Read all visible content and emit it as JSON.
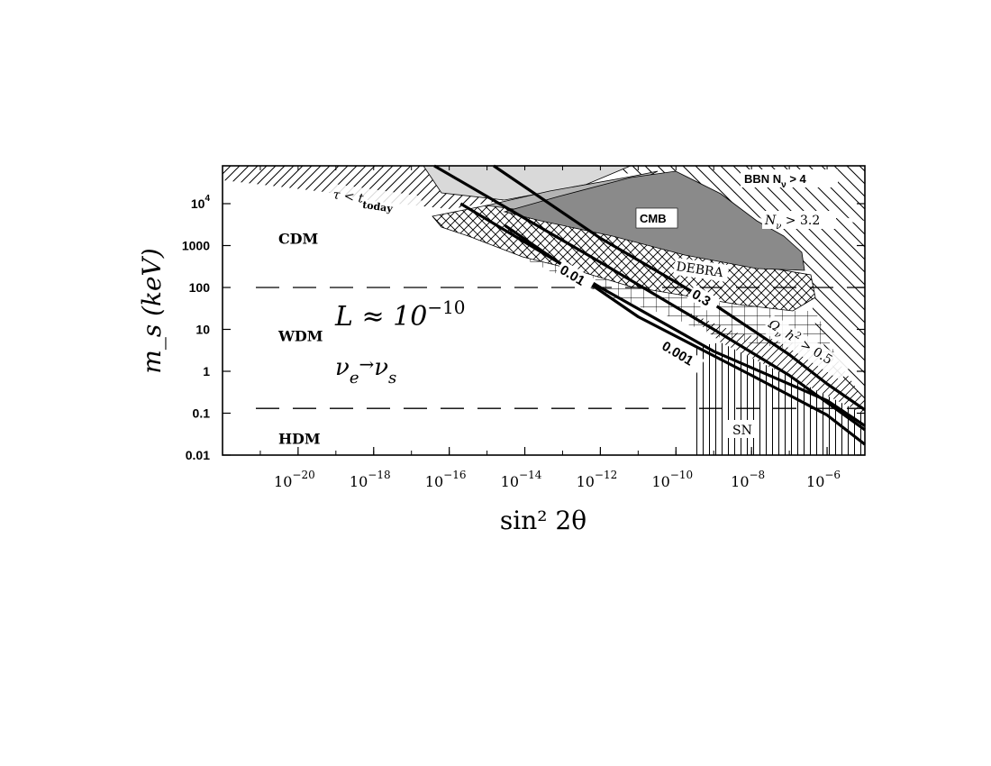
{
  "chart_data": {
    "type": "line",
    "xlabel": "sin² 2θ",
    "ylabel": "m_s (keV)",
    "x_scale": "log",
    "y_scale": "log",
    "xlim": [
      1e-22,
      1e-05
    ],
    "ylim": [
      0.01,
      80000
    ],
    "x_ticks": [
      {
        "value": 1e-20,
        "exp": "−20"
      },
      {
        "value": 1e-18,
        "exp": "−18"
      },
      {
        "value": 1e-16,
        "exp": "−16"
      },
      {
        "value": 1e-14,
        "exp": "−14"
      },
      {
        "value": 1e-12,
        "exp": "−12"
      },
      {
        "value": 1e-10,
        "exp": "−10"
      },
      {
        "value": 1e-08,
        "exp": "−8"
      },
      {
        "value": 1e-06,
        "exp": "−6"
      }
    ],
    "y_ticks": [
      {
        "value": 0.01,
        "label": "0.01"
      },
      {
        "value": 0.1,
        "label": "0.1"
      },
      {
        "value": 1,
        "label": "1"
      },
      {
        "value": 10,
        "label": "10"
      },
      {
        "value": 100,
        "label": "100"
      },
      {
        "value": 1000,
        "label": "1000"
      },
      {
        "value": 10000,
        "label": "10",
        "exp": "4"
      }
    ],
    "dm_boundaries": [
      {
        "m_s": 100
      },
      {
        "m_s": 0.13
      }
    ],
    "dm_regions": [
      {
        "label": "CDM",
        "x": 3e-21,
        "y": 1500
      },
      {
        "label": "WDM",
        "x": 3e-21,
        "y": 7
      },
      {
        "label": "HDM",
        "x": 3e-21,
        "y": 0.025
      }
    ],
    "annotations": [
      {
        "id": "lepton",
        "text": "L ≈ 10",
        "sup": "−10"
      },
      {
        "id": "channel",
        "text": "ν",
        "sub1": "e",
        "arrow": "→",
        "text2": "ν",
        "sub2": "s"
      },
      {
        "id": "lifetime",
        "text": "τ < t",
        "sub": "today"
      },
      {
        "id": "cmb",
        "text": "CMB"
      },
      {
        "id": "debra",
        "text": "DEBRA"
      },
      {
        "id": "bbn4",
        "text": "BBN N",
        "sub": "ν",
        "tail": " > 4"
      },
      {
        "id": "bbn32",
        "text": "N",
        "sub": "ν",
        "tail": " > 3.2"
      },
      {
        "id": "sn",
        "text": "SN"
      },
      {
        "id": "omega",
        "text": "Ω",
        "sub": "ν",
        "mid": " h",
        "sup": "2",
        "tail": " > 0.5"
      }
    ],
    "series": [
      {
        "name": "0.001",
        "points": [
          [
            3e-15,
            3000
          ],
          [
            1e-11,
            20
          ],
          [
            1e-08,
            0.8
          ],
          [
            1e-06,
            0.09
          ],
          [
            1e-05,
            0.018
          ]
        ]
      },
      {
        "name": "0.01",
        "points": [
          [
            2e-16,
            10000
          ],
          [
            1e-12,
            100
          ],
          [
            1e-09,
            3
          ],
          [
            1e-06,
            0.2
          ],
          [
            1e-05,
            0.05
          ]
        ]
      },
      {
        "name": "0.3",
        "points": [
          [
            1.5e-15,
            80000
          ],
          [
            1e-12,
            1500
          ],
          [
            1e-09,
            40
          ],
          [
            1e-07,
            2.5
          ],
          [
            1e-06,
            0.5
          ],
          [
            1e-05,
            0.12
          ]
        ]
      },
      {
        "name": "",
        "points": [
          [
            4e-17,
            80000
          ],
          [
            1e-12,
            400
          ],
          [
            1e-09,
            10
          ],
          [
            1e-07,
            0.8
          ],
          [
            1e-05,
            0.04
          ]
        ]
      }
    ],
    "contour_labels": [
      {
        "text": "0.01",
        "x": 8e-14,
        "y": 230
      },
      {
        "text": "0.3",
        "x": 2.5e-10,
        "y": 60
      },
      {
        "text": "0.001",
        "x": 4e-11,
        "y": 3.5
      }
    ],
    "colors": {
      "light": "#d9d9d9",
      "mid": "#b4b4b4",
      "dark": "#8a8a8a",
      "line": "#000000"
    }
  }
}
